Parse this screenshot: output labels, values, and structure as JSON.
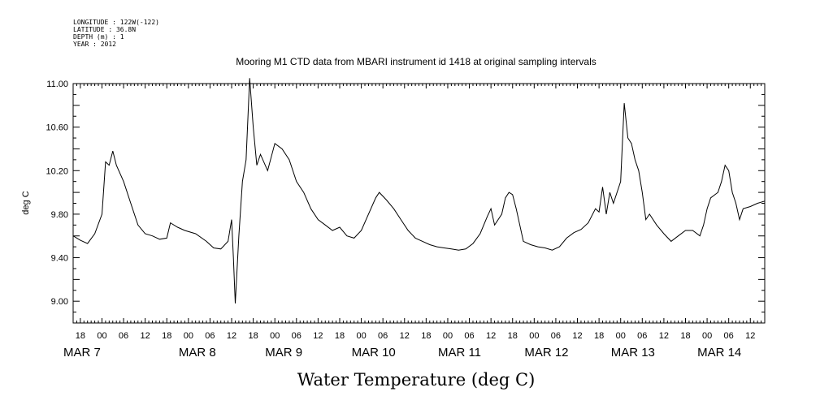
{
  "header": {
    "longitude": "LONGITUDE : 122W(-122)",
    "latitude": "LATITUDE : 36.8N",
    "depth": "DEPTH (m) : 1",
    "year": "YEAR : 2012"
  },
  "chart_data": {
    "type": "line",
    "title": "Mooring M1 CTD data from MBARI instrument id 1418 at original sampling intervals",
    "xlabel": "Water Temperature (deg C)",
    "ylabel": "deg C",
    "ylim": [
      8.8,
      11.0
    ],
    "xlim_hours_labels": [
      "MAR 6 16:00",
      "MAR 14 16:00"
    ],
    "y_ticks": [
      "9.00",
      "9.40",
      "9.80",
      "10.20",
      "10.60",
      "11.00"
    ],
    "x_hour_ticks": [
      "18",
      "00",
      "06",
      "12",
      "18",
      "00",
      "06",
      "12",
      "18",
      "00",
      "06",
      "12",
      "18",
      "00",
      "06",
      "12",
      "18",
      "00",
      "06",
      "12",
      "18",
      "00",
      "06",
      "12",
      "18",
      "00",
      "06",
      "12",
      "18",
      "00",
      "06",
      "12"
    ],
    "x_date_labels": [
      "MAR  7",
      "MAR  8",
      "MAR  9",
      "MAR 10",
      "MAR 11",
      "MAR 12",
      "MAR 13",
      "MAR 14"
    ],
    "series": [
      {
        "points": [
          [
            "Mar 6 16:00",
            9.6
          ],
          [
            "Mar 6 18:00",
            9.56
          ],
          [
            "Mar 6 20:00",
            9.53
          ],
          [
            "Mar 6 22:00",
            9.62
          ],
          [
            "Mar 7 00:00",
            9.8
          ],
          [
            "Mar 7 01:00",
            10.28
          ],
          [
            "Mar 7 02:00",
            10.25
          ],
          [
            "Mar 7 03:00",
            10.38
          ],
          [
            "Mar 7 04:00",
            10.25
          ],
          [
            "Mar 7 06:00",
            10.1
          ],
          [
            "Mar 7 08:00",
            9.9
          ],
          [
            "Mar 7 10:00",
            9.7
          ],
          [
            "Mar 7 12:00",
            9.62
          ],
          [
            "Mar 7 14:00",
            9.6
          ],
          [
            "Mar 7 16:00",
            9.57
          ],
          [
            "Mar 7 18:00",
            9.58
          ],
          [
            "Mar 7 19:00",
            9.72
          ],
          [
            "Mar 7 21:00",
            9.68
          ],
          [
            "Mar 7 23:00",
            9.65
          ],
          [
            "Mar 8 02:00",
            9.62
          ],
          [
            "Mar 8 05:00",
            9.55
          ],
          [
            "Mar 8 07:00",
            9.49
          ],
          [
            "Mar 8 09:00",
            9.48
          ],
          [
            "Mar 8 11:00",
            9.55
          ],
          [
            "Mar 8 12:00",
            9.75
          ],
          [
            "Mar 8 12:30",
            9.4
          ],
          [
            "Mar 8 13:00",
            8.98
          ],
          [
            "Mar 8 14:00",
            9.6
          ],
          [
            "Mar 8 15:00",
            10.1
          ],
          [
            "Mar 8 16:00",
            10.3
          ],
          [
            "Mar 8 17:00",
            11.05
          ],
          [
            "Mar 8 18:00",
            10.6
          ],
          [
            "Mar 8 19:00",
            10.25
          ],
          [
            "Mar 8 20:00",
            10.35
          ],
          [
            "Mar 8 22:00",
            10.2
          ],
          [
            "Mar 9 00:00",
            10.45
          ],
          [
            "Mar 9 02:00",
            10.4
          ],
          [
            "Mar 9 04:00",
            10.3
          ],
          [
            "Mar 9 06:00",
            10.1
          ],
          [
            "Mar 9 08:00",
            10.0
          ],
          [
            "Mar 9 10:00",
            9.85
          ],
          [
            "Mar 9 12:00",
            9.75
          ],
          [
            "Mar 9 14:00",
            9.7
          ],
          [
            "Mar 9 16:00",
            9.65
          ],
          [
            "Mar 9 18:00",
            9.68
          ],
          [
            "Mar 9 20:00",
            9.6
          ],
          [
            "Mar 9 22:00",
            9.58
          ],
          [
            "Mar 10 00:00",
            9.65
          ],
          [
            "Mar 10 02:00",
            9.8
          ],
          [
            "Mar 10 04:00",
            9.95
          ],
          [
            "Mar 10 05:00",
            10.0
          ],
          [
            "Mar 10 07:00",
            9.93
          ],
          [
            "Mar 10 09:00",
            9.85
          ],
          [
            "Mar 10 11:00",
            9.75
          ],
          [
            "Mar 10 13:00",
            9.65
          ],
          [
            "Mar 10 15:00",
            9.58
          ],
          [
            "Mar 10 17:00",
            9.55
          ],
          [
            "Mar 10 19:00",
            9.52
          ],
          [
            "Mar 10 21:00",
            9.5
          ],
          [
            "Mar 10 23:00",
            9.49
          ],
          [
            "Mar 11 01:00",
            9.48
          ],
          [
            "Mar 11 03:00",
            9.47
          ],
          [
            "Mar 11 05:00",
            9.48
          ],
          [
            "Mar 11 07:00",
            9.53
          ],
          [
            "Mar 11 09:00",
            9.62
          ],
          [
            "Mar 11 11:00",
            9.78
          ],
          [
            "Mar 11 12:00",
            9.85
          ],
          [
            "Mar 11 13:00",
            9.7
          ],
          [
            "Mar 11 15:00",
            9.8
          ],
          [
            "Mar 11 16:00",
            9.95
          ],
          [
            "Mar 11 17:00",
            10.0
          ],
          [
            "Mar 11 18:00",
            9.98
          ],
          [
            "Mar 11 19:00",
            9.85
          ],
          [
            "Mar 11 20:00",
            9.7
          ],
          [
            "Mar 11 21:00",
            9.55
          ],
          [
            "Mar 11 23:00",
            9.52
          ],
          [
            "Mar 12 01:00",
            9.5
          ],
          [
            "Mar 12 03:00",
            9.49
          ],
          [
            "Mar 12 05:00",
            9.47
          ],
          [
            "Mar 12 07:00",
            9.5
          ],
          [
            "Mar 12 09:00",
            9.58
          ],
          [
            "Mar 12 11:00",
            9.63
          ],
          [
            "Mar 12 13:00",
            9.66
          ],
          [
            "Mar 12 15:00",
            9.72
          ],
          [
            "Mar 12 17:00",
            9.85
          ],
          [
            "Mar 12 18:00",
            9.82
          ],
          [
            "Mar 12 19:00",
            10.05
          ],
          [
            "Mar 12 20:00",
            9.8
          ],
          [
            "Mar 12 21:00",
            10.0
          ],
          [
            "Mar 12 22:00",
            9.9
          ],
          [
            "Mar 13 00:00",
            10.1
          ],
          [
            "Mar 13 01:00",
            10.82
          ],
          [
            "Mar 13 02:00",
            10.5
          ],
          [
            "Mar 13 03:00",
            10.45
          ],
          [
            "Mar 13 04:00",
            10.3
          ],
          [
            "Mar 13 05:00",
            10.2
          ],
          [
            "Mar 13 06:00",
            10.0
          ],
          [
            "Mar 13 07:00",
            9.75
          ],
          [
            "Mar 13 08:00",
            9.8
          ],
          [
            "Mar 13 10:00",
            9.7
          ],
          [
            "Mar 13 12:00",
            9.62
          ],
          [
            "Mar 13 14:00",
            9.55
          ],
          [
            "Mar 13 16:00",
            9.6
          ],
          [
            "Mar 13 18:00",
            9.65
          ],
          [
            "Mar 13 20:00",
            9.65
          ],
          [
            "Mar 13 22:00",
            9.6
          ],
          [
            "Mar 13 23:00",
            9.7
          ],
          [
            "Mar 14 00:00",
            9.85
          ],
          [
            "Mar 14 01:00",
            9.95
          ],
          [
            "Mar 14 03:00",
            10.0
          ],
          [
            "Mar 14 04:00",
            10.1
          ],
          [
            "Mar 14 05:00",
            10.25
          ],
          [
            "Mar 14 06:00",
            10.2
          ],
          [
            "Mar 14 07:00",
            10.0
          ],
          [
            "Mar 14 08:00",
            9.9
          ],
          [
            "Mar 14 09:00",
            9.75
          ],
          [
            "Mar 14 10:00",
            9.85
          ],
          [
            "Mar 14 12:00",
            9.87
          ],
          [
            "Mar 14 14:00",
            9.9
          ],
          [
            "Mar 14 16:00",
            9.92
          ]
        ]
      }
    ]
  }
}
